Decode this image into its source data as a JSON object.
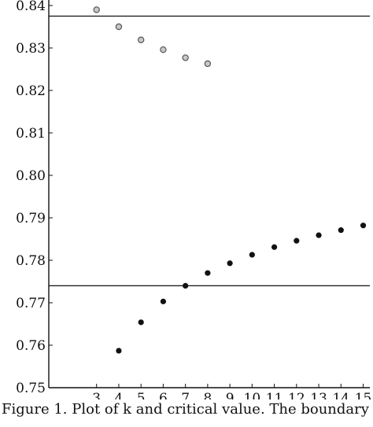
{
  "chart_data": {
    "type": "scatter",
    "title": "",
    "xlabel": "",
    "ylabel": "",
    "xlim": [
      0.85,
      15.3
    ],
    "ylim": [
      0.75,
      0.84
    ],
    "x_ticks": [
      3,
      4,
      5,
      6,
      7,
      8,
      9,
      10,
      11,
      12,
      13,
      14,
      15
    ],
    "y_ticks": [
      0.75,
      0.76,
      0.77,
      0.78,
      0.79,
      0.8,
      0.81,
      0.82,
      0.83,
      0.84
    ],
    "y_tick_labels": [
      "0.75",
      "0.76",
      "0.77",
      "0.78",
      "0.79",
      "0.80",
      "0.81",
      "0.82",
      "0.83",
      "0.84"
    ],
    "grid": false,
    "reference_lines": [
      {
        "y": 0.8375
      },
      {
        "y": 0.774
      }
    ],
    "series": [
      {
        "marker": "open-circle",
        "color": "#555555",
        "x": [
          3,
          4,
          5,
          6,
          7,
          8
        ],
        "y": [
          0.839,
          0.835,
          0.8319,
          0.8296,
          0.8277,
          0.8263
        ]
      },
      {
        "marker": "filled-circle",
        "color": "#111111",
        "x": [
          4,
          5,
          6,
          7,
          8,
          9,
          10,
          11,
          12,
          13,
          14,
          15
        ],
        "y": [
          0.7587,
          0.7654,
          0.7703,
          0.774,
          0.777,
          0.7793,
          0.7813,
          0.7831,
          0.7846,
          0.7859,
          0.7871,
          0.7882
        ]
      }
    ]
  },
  "caption": "Figure 1.  Plot of  k  and  critical value.  The boundary"
}
